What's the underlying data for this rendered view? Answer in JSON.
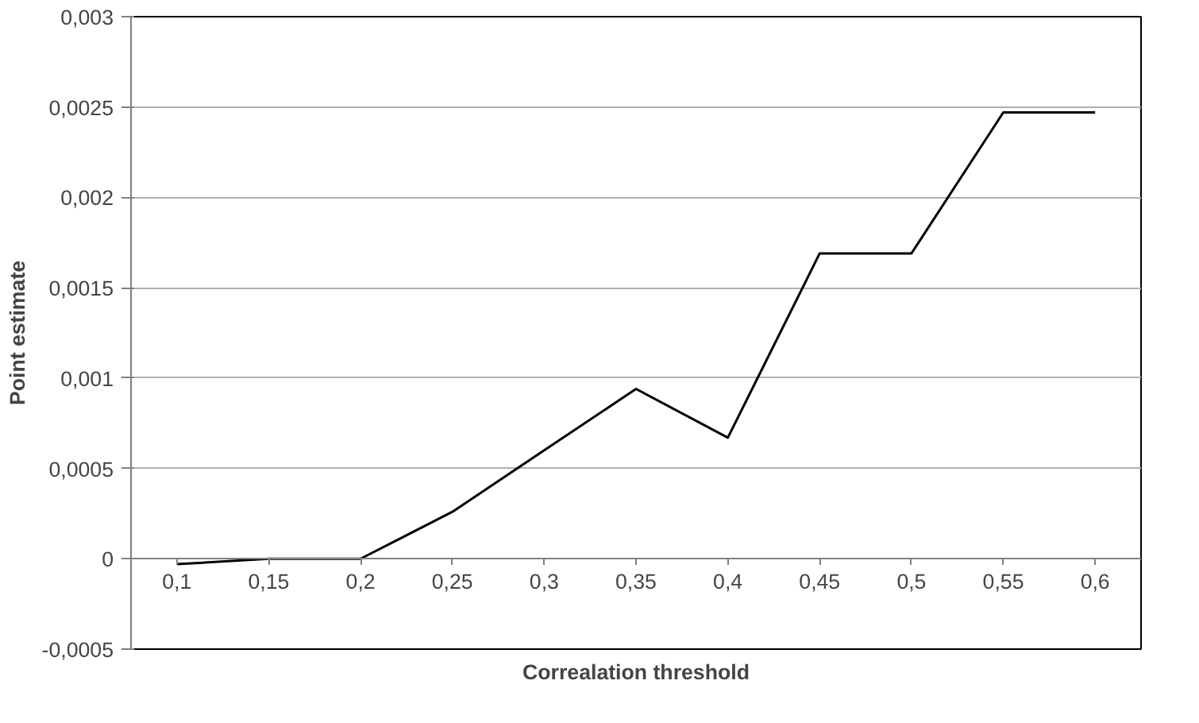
{
  "chart_data": {
    "type": "line",
    "xlabel": "Correalation threshold",
    "ylabel": "Point estimate",
    "categories": [
      "0,1",
      "0,15",
      "0,2",
      "0,25",
      "0,3",
      "0,35",
      "0,4",
      "0,45",
      "0,5",
      "0,55",
      "0,6"
    ],
    "series": [
      {
        "color": "#000000",
        "values": [
          -3e-05,
          0,
          0,
          0.00026,
          0.0006,
          0.00094,
          0.00067,
          0.00169,
          0.00169,
          0.00247,
          0.00247
        ]
      }
    ],
    "ylim": [
      -0.0005,
      0.003
    ],
    "yticks": [
      {
        "value": -0.0005,
        "label": "-0,0005"
      },
      {
        "value": 0,
        "label": "0"
      },
      {
        "value": 0.0005,
        "label": "0,0005"
      },
      {
        "value": 0.001,
        "label": "0,001"
      },
      {
        "value": 0.0015,
        "label": "0,0015"
      },
      {
        "value": 0.002,
        "label": "0,002"
      },
      {
        "value": 0.0025,
        "label": "0,0025"
      },
      {
        "value": 0.003,
        "label": "0,003"
      }
    ],
    "grid": "y",
    "marker": "none",
    "line_style": "solid"
  }
}
